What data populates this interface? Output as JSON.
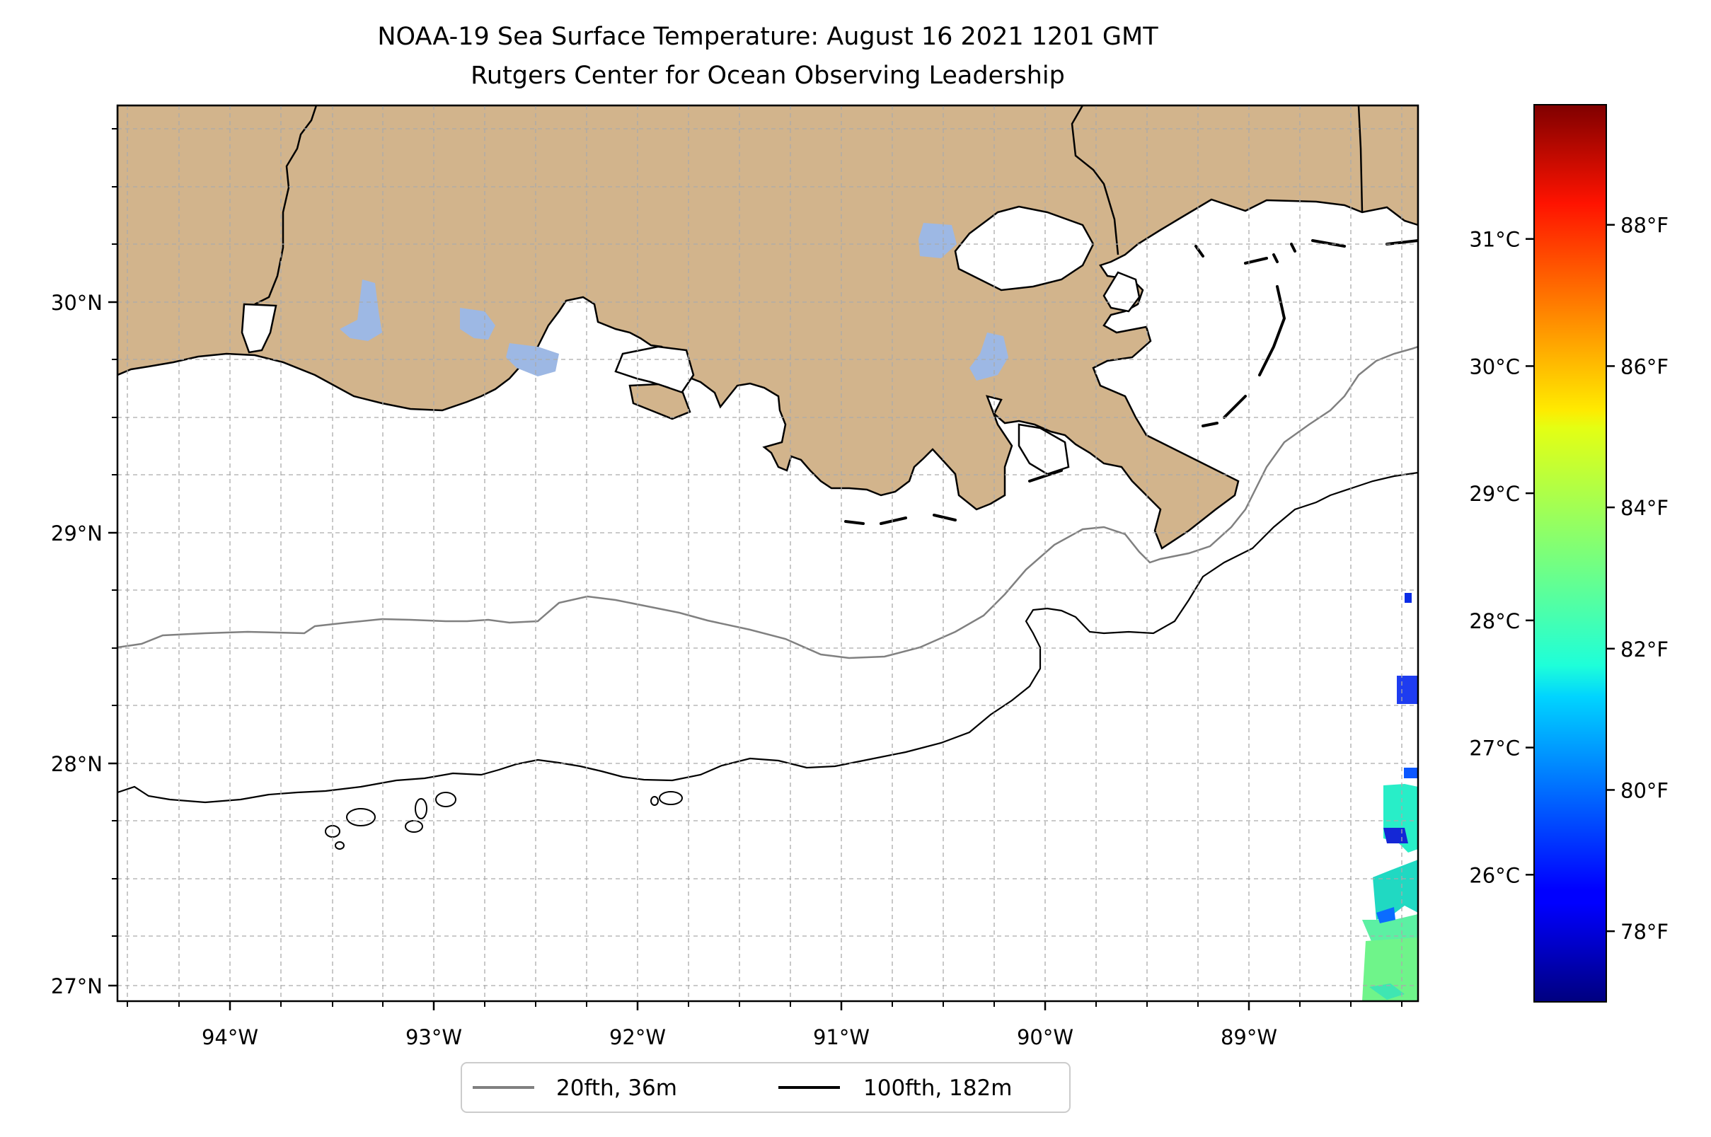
{
  "title": {
    "line1": "NOAA-19 Sea Surface Temperature: August 16 2021 1201 GMT",
    "line2": "Rutgers Center for Ocean Observing Leadership"
  },
  "map": {
    "lon_range": [
      -94.55,
      -88.18
    ],
    "lat_range": [
      26.94,
      30.84
    ],
    "land_color": "#d2b48c",
    "water_body_color": "#9db8e4",
    "coast_color": "#000000",
    "grid": true,
    "lon_ticks": [
      {
        "value": -94,
        "label": "94°W"
      },
      {
        "value": -93,
        "label": "93°W"
      },
      {
        "value": -92,
        "label": "92°W"
      },
      {
        "value": -91,
        "label": "91°W"
      },
      {
        "value": -90,
        "label": "90°W"
      },
      {
        "value": -89,
        "label": "89°W"
      }
    ],
    "lat_ticks": [
      {
        "value": 30,
        "label": "30°N"
      },
      {
        "value": 29,
        "label": "29°N"
      },
      {
        "value": 28,
        "label": "28°N"
      },
      {
        "value": 27,
        "label": "27°N"
      }
    ]
  },
  "contours": [
    {
      "label": "20fth, 36m",
      "color": "#808080"
    },
    {
      "label": "100fth, 182m",
      "color": "#000000"
    }
  ],
  "legend": {
    "placement": "bottom-center"
  },
  "colorbar": {
    "colormap": "jet",
    "range_f": [
      77.0,
      89.7
    ],
    "celsius_ticks": [
      {
        "value": 31,
        "label": "31°C"
      },
      {
        "value": 30,
        "label": "30°C"
      },
      {
        "value": 29,
        "label": "29°C"
      },
      {
        "value": 28,
        "label": "28°C"
      },
      {
        "value": 27,
        "label": "27°C"
      },
      {
        "value": 26,
        "label": "26°C"
      }
    ],
    "fahrenheit_ticks": [
      {
        "value": 88,
        "label": "88°F"
      },
      {
        "value": 86,
        "label": "86°F"
      },
      {
        "value": 84,
        "label": "84°F"
      },
      {
        "value": 82,
        "label": "82°F"
      },
      {
        "value": 80,
        "label": "80°F"
      },
      {
        "value": 78,
        "label": "78°F"
      }
    ]
  }
}
